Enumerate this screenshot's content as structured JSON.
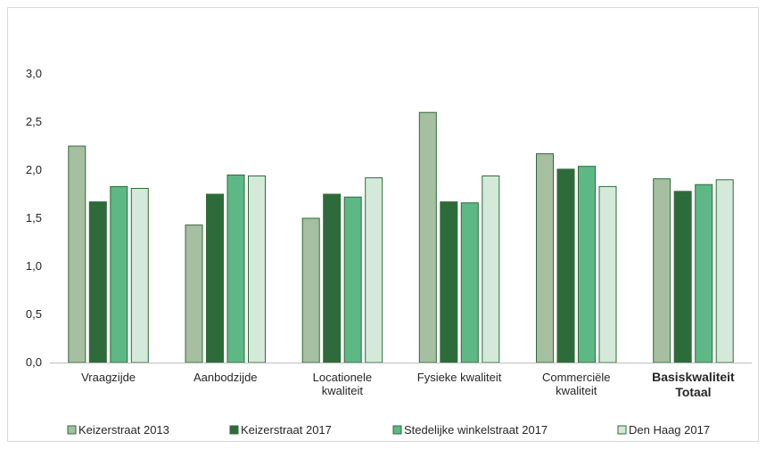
{
  "chart_data": {
    "type": "bar",
    "title": "",
    "xlabel": "",
    "ylabel": "",
    "ylim": [
      0,
      3.0
    ],
    "yticks": [
      "0,0",
      "0,5",
      "1,0",
      "1,5",
      "2,0",
      "2,5",
      "3,0"
    ],
    "categories": [
      [
        "Vraagzijde"
      ],
      [
        "Aanbodzijde"
      ],
      [
        "Locationele",
        "kwaliteit"
      ],
      [
        "Fysieke kwaliteit"
      ],
      [
        "Commerciële",
        "kwaliteit"
      ],
      [
        "Basiskwaliteit",
        "Totaal"
      ]
    ],
    "category_bold": [
      false,
      false,
      false,
      false,
      false,
      true
    ],
    "series": [
      {
        "name": "Keizerstraat 2013",
        "color": "#a6bfa0",
        "values": [
          2.25,
          1.43,
          1.5,
          2.6,
          2.17,
          1.91
        ]
      },
      {
        "name": "Keizerstraat 2017",
        "color": "#2e6b3a",
        "values": [
          1.67,
          1.75,
          1.75,
          1.67,
          2.01,
          1.78
        ]
      },
      {
        "name": "Stedelijke winkelstraat 2017",
        "color": "#5db885",
        "values": [
          1.83,
          1.95,
          1.72,
          1.66,
          2.04,
          1.85
        ]
      },
      {
        "name": "Den Haag 2017",
        "color": "#d4e9da",
        "values": [
          1.81,
          1.94,
          1.92,
          1.94,
          1.83,
          1.9
        ]
      }
    ],
    "grid": false,
    "legend": "bottom"
  }
}
